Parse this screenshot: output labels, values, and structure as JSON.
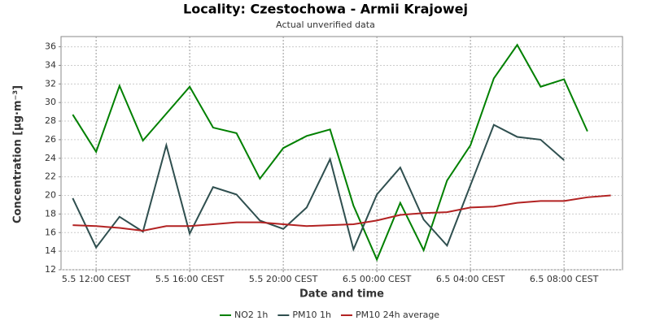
{
  "chart_data": {
    "type": "line",
    "title": "Locality: Czestochowa - Armii Krajowej",
    "subtitle": "Actual unverified data",
    "x_label": "Date and time",
    "y_label": "Concentration [µg·m⁻³]",
    "categories": [
      null,
      "5.5 12:00 CEST",
      null,
      null,
      null,
      "5.5 16:00 CEST",
      null,
      null,
      null,
      "5.5 20:00 CEST",
      null,
      null,
      null,
      "6.5 00:00 CEST",
      null,
      null,
      null,
      "6.5 04:00 CEST",
      null,
      null,
      null,
      "6.5 08:00 CEST",
      null,
      null
    ],
    "series": [
      {
        "name": "NO2 1h",
        "color": "#008000",
        "values": [
          28.7,
          24.7,
          31.8,
          25.9,
          28.8,
          31.7,
          27.3,
          26.7,
          21.8,
          25.1,
          26.4,
          27.1,
          18.9,
          13.1,
          19.2,
          14.1,
          21.6,
          25.4,
          32.6,
          36.2,
          31.7,
          32.5,
          26.9,
          null
        ]
      },
      {
        "name": "PM10 1h",
        "color": "#2f4f4f",
        "values": [
          19.7,
          14.4,
          17.7,
          16.1,
          25.4,
          15.9,
          20.9,
          20.1,
          17.3,
          16.4,
          18.7,
          23.9,
          14.2,
          20.1,
          23.0,
          17.4,
          14.6,
          21.1,
          27.6,
          26.3,
          26.0,
          23.8,
          null,
          null
        ]
      },
      {
        "name": "PM10 24h average",
        "color": "#b22222",
        "values": [
          16.8,
          16.7,
          16.5,
          16.2,
          16.7,
          16.7,
          16.9,
          17.1,
          17.1,
          16.9,
          16.7,
          16.8,
          16.9,
          17.3,
          17.9,
          18.1,
          18.2,
          18.7,
          18.8,
          19.2,
          19.4,
          19.4,
          19.8,
          20.0
        ]
      }
    ],
    "ylim": [
      12,
      37.1
    ],
    "yticks": [
      12,
      14,
      16,
      18,
      20,
      22,
      24,
      26,
      28,
      30,
      32,
      34,
      36
    ],
    "grid": true,
    "legend": "bottom"
  }
}
